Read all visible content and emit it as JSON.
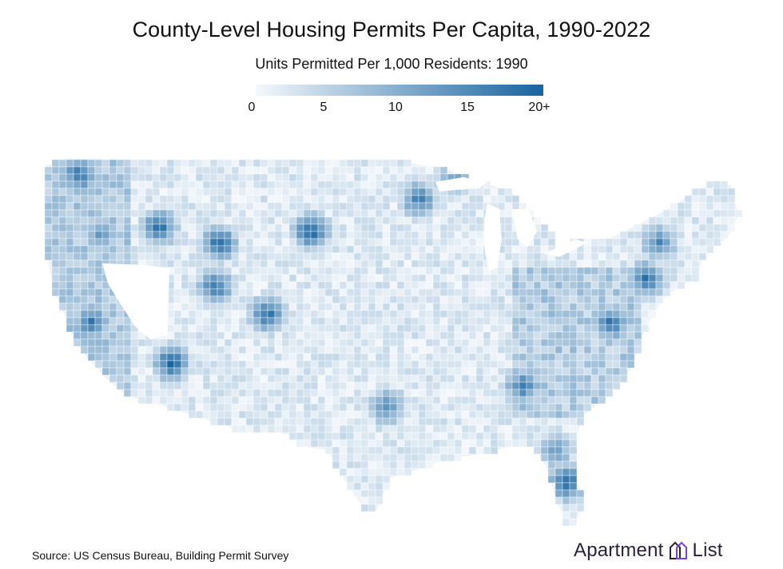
{
  "title": "County-Level Housing Permits Per Capita, 1990-2022",
  "subtitle": "Units Permitted Per 1,000 Residents: 1990",
  "legend": {
    "ticks": [
      {
        "label": "0",
        "value": 0
      },
      {
        "label": "5",
        "value": 5
      },
      {
        "label": "10",
        "value": 10
      },
      {
        "label": "15",
        "value": 15
      },
      {
        "label": "20+",
        "value": 20
      }
    ],
    "min": 0,
    "max": 20,
    "color_low": "#f4f8fc",
    "color_high": "#1764a0"
  },
  "source": "Source: US Census Bureau, Building Permit Survey",
  "brand": {
    "word1": "Apartment",
    "word2": "List",
    "logo_icon": "apartment-list-logo-icon",
    "logo_color": "#7b3fe4"
  },
  "colors": {
    "border": "#ffffff",
    "text": "#111111"
  }
}
